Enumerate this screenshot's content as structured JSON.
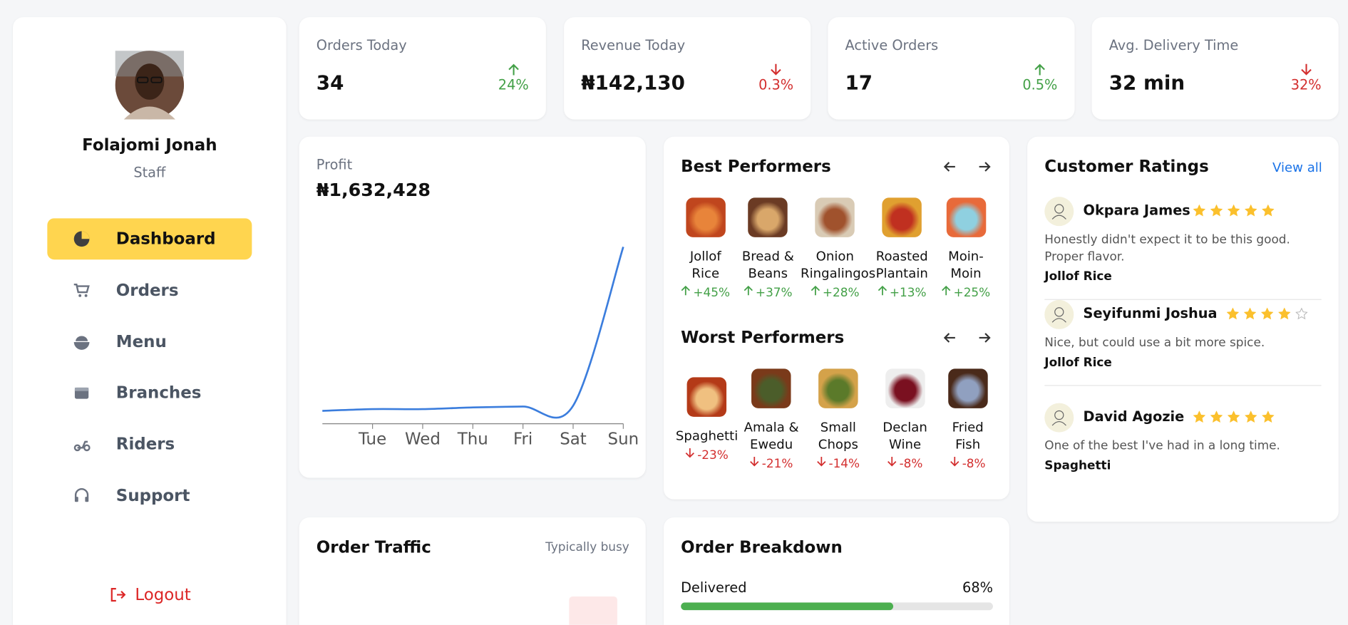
{
  "user": {
    "name": "Folajomi Jonah",
    "role": "Staff"
  },
  "nav": {
    "items": [
      "Dashboard",
      "Orders",
      "Menu",
      "Branches",
      "Riders",
      "Support"
    ],
    "logout": "Logout"
  },
  "stats": [
    {
      "label": "Orders Today",
      "value": "34",
      "change": "24%",
      "trend": "up"
    },
    {
      "label": "Revenue Today",
      "value": "₦142,130",
      "change": "0.3%",
      "trend": "down"
    },
    {
      "label": "Active Orders",
      "value": "17",
      "change": "0.5%",
      "trend": "up"
    },
    {
      "label": "Avg. Delivery Time",
      "value": "32 min",
      "change": "32%",
      "trend": "down"
    }
  ],
  "profit": {
    "label": "Profit",
    "value": "₦1,632,428",
    "chart": {
      "type": "line",
      "categories": [
        null,
        "Tue",
        "Wed",
        "Thu",
        "Fri",
        "Sat",
        "Sun"
      ],
      "values": [
        77700,
        88100,
        88100,
        98500,
        103600,
        108800,
        1067500
      ],
      "color": "#3b7ddd",
      "ylim": [
        0,
        1100000
      ]
    }
  },
  "best": {
    "title": "Best Performers",
    "trend": "up",
    "items": [
      {
        "name": "Jollof Rice",
        "change": "+45%"
      },
      {
        "name": "Bread & Beans",
        "change": "+37%"
      },
      {
        "name": "Onion Ringalingos",
        "change": "+28%"
      },
      {
        "name": "Roasted Plantain",
        "change": "+13%"
      },
      {
        "name": "Moin-Moin",
        "change": "+25%"
      }
    ]
  },
  "worst": {
    "title": "Worst Performers",
    "trend": "down",
    "items": [
      {
        "name": "Spaghetti",
        "change": "-23%"
      },
      {
        "name": "Amala & Ewedu",
        "change": "-21%"
      },
      {
        "name": "Small Chops",
        "change": "-14%"
      },
      {
        "name": "Declan Wine",
        "change": "-8%"
      },
      {
        "name": "Fried Fish",
        "change": "-8%"
      }
    ]
  },
  "ratings": {
    "title": "Customer Ratings",
    "link": "View all",
    "reviews": [
      {
        "name": "Okpara James",
        "rating": 5,
        "text": "Honestly didn't expect it to be this good. Proper flavor.",
        "item": "Jollof Rice"
      },
      {
        "name": "Seyifunmi Joshua",
        "rating": 4,
        "text": "Nice, but could use a bit more spice.",
        "item": "Jollof Rice"
      },
      {
        "name": "David Agozie",
        "rating": 5,
        "text": "One of the best I've had in a long time.",
        "item": "Spaghetti"
      }
    ]
  },
  "traffic": {
    "title": "Order Traffic",
    "note": "Typically busy"
  },
  "breakdown": {
    "title": "Order Breakdown",
    "items": [
      {
        "label": "Delivered",
        "value": 68,
        "value_label": "68%"
      }
    ]
  }
}
